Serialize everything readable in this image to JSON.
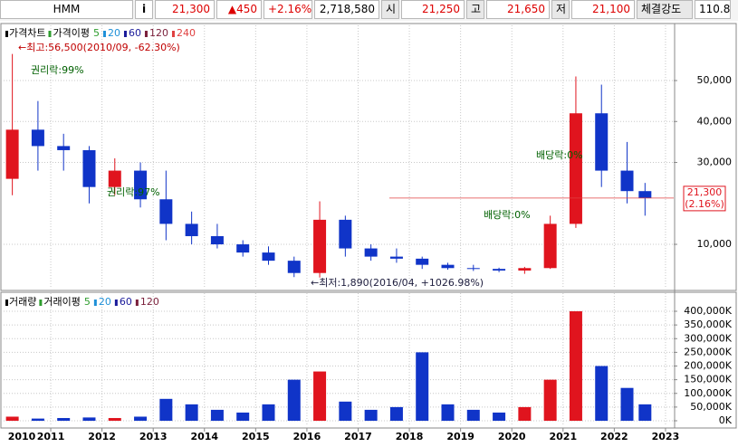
{
  "header": {
    "symbol": "HMM",
    "info": "i",
    "price": "21,300",
    "change": "▲450",
    "change_pct": "+2.16%",
    "volume": "2,718,580",
    "open_label": "시",
    "open": "21,250",
    "high_label": "고",
    "high": "21,650",
    "low_label": "저",
    "low": "21,100",
    "strength_label": "체결강도",
    "strength": "110.8"
  },
  "chart_data": [
    {
      "type": "candlestick",
      "legend": {
        "title": "가격차트",
        "ma_title": "가격이평",
        "items": [
          {
            "name": "5",
            "color": "#2e9d2e"
          },
          {
            "name": "20",
            "color": "#1e90d8"
          },
          {
            "name": "60",
            "color": "#1a1a9a"
          },
          {
            "name": "120",
            "color": "#7a1f3a"
          },
          {
            "name": "240",
            "color": "#e04040"
          }
        ]
      },
      "x": [
        2010.25,
        2010.75,
        2011.25,
        2011.75,
        2012.25,
        2012.75,
        2013.25,
        2013.75,
        2014.25,
        2014.75,
        2015.25,
        2015.75,
        2016.25,
        2016.75,
        2017.25,
        2017.75,
        2018.25,
        2018.75,
        2019.25,
        2019.75,
        2020.25,
        2020.75,
        2021.25,
        2021.75,
        2022.25,
        2022.6
      ],
      "open": [
        26000,
        38000,
        34000,
        33000,
        24000,
        28000,
        21000,
        15000,
        12000,
        10000,
        8000,
        6000,
        3000,
        16000,
        9000,
        7000,
        6500,
        5000,
        4200,
        4000,
        3600,
        4200,
        15000,
        42000,
        28000,
        23000
      ],
      "high": [
        56500,
        45000,
        37000,
        34000,
        31000,
        30000,
        28000,
        18000,
        15000,
        11000,
        9500,
        7000,
        20500,
        17000,
        10000,
        9000,
        7000,
        5500,
        5000,
        4300,
        4500,
        17000,
        51000,
        49000,
        35000,
        25000
      ],
      "low": [
        22000,
        28000,
        28000,
        20000,
        22000,
        19000,
        11000,
        10000,
        9000,
        7000,
        5000,
        2000,
        1890,
        7000,
        6000,
        5500,
        4000,
        3800,
        3500,
        3200,
        2800,
        4000,
        14000,
        24000,
        20000,
        17000
      ],
      "close": [
        38000,
        34000,
        33000,
        24000,
        28000,
        21000,
        15000,
        12000,
        10000,
        8000,
        6000,
        3000,
        16000,
        9000,
        7000,
        6500,
        5000,
        4200,
        4000,
        3600,
        4200,
        15000,
        42000,
        28000,
        23000,
        21300
      ],
      "up_color": "#e0141e",
      "down_color": "#1034c8",
      "xlim": [
        2010.08,
        2023.16
      ],
      "ylim": [
        -600,
        62600
      ],
      "yticks": [
        {
          "value": 10000,
          "label": "10,000"
        },
        {
          "value": 30000,
          "label": "30,000"
        },
        {
          "value": 40000,
          "label": "40,000"
        },
        {
          "value": 50000,
          "label": "50,000"
        }
      ],
      "price_tag": "21,300",
      "price_tag_change": "(2.16%)",
      "annotations": [
        "←최고:56,500(2010/09, -62.30%)",
        "권리락:99%",
        "권리락:97%",
        "배당락:0%",
        "배당락:0%",
        "←최저:1,890(2016/04, +1026.98%)"
      ]
    },
    {
      "type": "bar",
      "legend": {
        "title": "거래량",
        "ma_title": "거래이평",
        "items": [
          {
            "name": "5",
            "color": "#2e9d2e"
          },
          {
            "name": "20",
            "color": "#1e90d8"
          },
          {
            "name": "60",
            "color": "#1a1a9a"
          },
          {
            "name": "120",
            "color": "#7a1f3a"
          }
        ]
      },
      "x": [
        2010.25,
        2010.75,
        2011.25,
        2011.75,
        2012.25,
        2012.75,
        2013.25,
        2013.75,
        2014.25,
        2014.75,
        2015.25,
        2015.75,
        2016.25,
        2016.75,
        2017.25,
        2017.75,
        2018.25,
        2018.75,
        2019.25,
        2019.75,
        2020.25,
        2020.75,
        2021.25,
        2021.75,
        2022.25,
        2022.6
      ],
      "values": [
        15000,
        8000,
        10000,
        12000,
        10000,
        15000,
        80000,
        60000,
        40000,
        30000,
        60000,
        150000,
        180000,
        70000,
        40000,
        50000,
        250000,
        60000,
        40000,
        30000,
        50000,
        150000,
        400000,
        200000,
        120000,
        60000
      ],
      "xlim": [
        2010.08,
        2023.16
      ],
      "ylim": [
        -16500,
        452900
      ],
      "xticks": [
        2010,
        2011,
        2012,
        2013,
        2014,
        2015,
        2016,
        2017,
        2018,
        2019,
        2020,
        2021,
        2022,
        2023
      ],
      "yticks": [
        {
          "value": 0,
          "label": "0K"
        },
        {
          "value": 50000,
          "label": "50,000K"
        },
        {
          "value": 100000,
          "label": "100,000K"
        },
        {
          "value": 150000,
          "label": "150,000K"
        },
        {
          "value": 200000,
          "label": "200,000K"
        },
        {
          "value": 250000,
          "label": "250,000K"
        },
        {
          "value": 300000,
          "label": "300,000K"
        },
        {
          "value": 350000,
          "label": "350,000K"
        },
        {
          "value": 400000,
          "label": "400,000K"
        }
      ]
    }
  ]
}
